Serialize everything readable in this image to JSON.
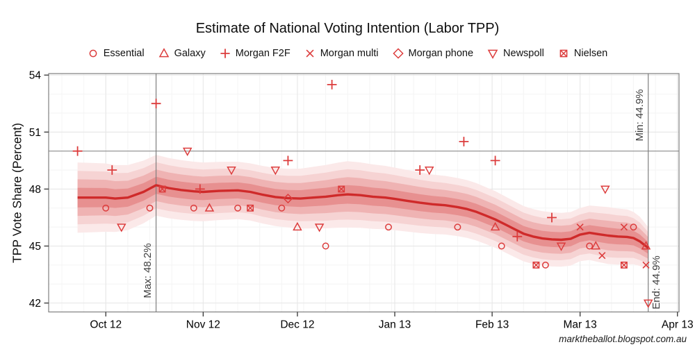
{
  "header": {
    "title": "Estimate of National Voting Intention (Labor TPP)"
  },
  "footer": {
    "watermark": "marktheballot.blogspot.com.au"
  },
  "chart_data": {
    "type": "line",
    "title": "Estimate of National Voting Intention (Labor TPP)",
    "xlabel": "",
    "ylabel": "TPP Vote Share (Percent)",
    "x_unit": "days since 1 Oct 2012",
    "xlim": [
      -18.2,
      182.5
    ],
    "ylim": [
      41.53,
      54.08
    ],
    "grid": {
      "show": true,
      "y_minor_step": 1,
      "x_minor_step_days": 7,
      "x_minor_start": -14
    },
    "y_ticks": {
      "values": [
        42,
        45,
        48,
        51,
        54
      ],
      "labels": [
        "42",
        "45",
        "48",
        "51",
        "54"
      ]
    },
    "x_ticks": {
      "days": [
        0,
        31,
        61,
        92,
        123,
        151,
        182
      ],
      "labels": [
        "Oct 12",
        "Nov 12",
        "Dec 12",
        "Jan 13",
        "Feb 13",
        "Mar 13",
        "Apr 13"
      ]
    },
    "reference_line_y": 50,
    "annotations": [
      {
        "id": "max",
        "label": "Max: 48.2%",
        "day": 16,
        "value": 48.2,
        "cy": 390,
        "dx": -12
      },
      {
        "id": "min",
        "label": "Min: 44.9%",
        "day": 172.7,
        "value": 44.9,
        "cy": 166,
        "dx": -12
      },
      {
        "id": "end",
        "label": "End: 44.9%",
        "day": 172.7,
        "value": 44.9,
        "cy": 407,
        "dx": 12
      }
    ],
    "trend": {
      "name": "smoothed estimate",
      "points": [
        [
          -9,
          47.55
        ],
        [
          0,
          47.55
        ],
        [
          3,
          47.5
        ],
        [
          7,
          47.55
        ],
        [
          12,
          47.85
        ],
        [
          16,
          48.2
        ],
        [
          20,
          48.05
        ],
        [
          24,
          47.95
        ],
        [
          28,
          47.88
        ],
        [
          31,
          47.85
        ],
        [
          36,
          47.9
        ],
        [
          42,
          47.93
        ],
        [
          46,
          47.85
        ],
        [
          50,
          47.7
        ],
        [
          54,
          47.58
        ],
        [
          58,
          47.52
        ],
        [
          62,
          47.5
        ],
        [
          66,
          47.55
        ],
        [
          70,
          47.6
        ],
        [
          74,
          47.68
        ],
        [
          77,
          47.72
        ],
        [
          81,
          47.68
        ],
        [
          85,
          47.6
        ],
        [
          89,
          47.55
        ],
        [
          92,
          47.48
        ],
        [
          96,
          47.38
        ],
        [
          100,
          47.28
        ],
        [
          104,
          47.2
        ],
        [
          108,
          47.15
        ],
        [
          112,
          47.05
        ],
        [
          115,
          46.95
        ],
        [
          118,
          46.8
        ],
        [
          121,
          46.6
        ],
        [
          124,
          46.4
        ],
        [
          127,
          46.15
        ],
        [
          130,
          45.9
        ],
        [
          133,
          45.65
        ],
        [
          136,
          45.5
        ],
        [
          139,
          45.4
        ],
        [
          142,
          45.35
        ],
        [
          145,
          45.33
        ],
        [
          148,
          45.38
        ],
        [
          151,
          45.6
        ],
        [
          154,
          45.7
        ],
        [
          157,
          45.62
        ],
        [
          160,
          45.55
        ],
        [
          163,
          45.5
        ],
        [
          166,
          45.48
        ],
        [
          168,
          45.42
        ],
        [
          170,
          45.25
        ],
        [
          172.7,
          44.9
        ]
      ]
    },
    "bands": {
      "outer_halfwidth": [
        [
          -9,
          1.85
        ],
        [
          0,
          1.8
        ],
        [
          16,
          1.6
        ],
        [
          31,
          1.55
        ],
        [
          45,
          1.5
        ],
        [
          60,
          1.55
        ],
        [
          77,
          1.75
        ],
        [
          92,
          1.65
        ],
        [
          106,
          1.55
        ],
        [
          121,
          1.5
        ],
        [
          135,
          1.45
        ],
        [
          151,
          1.4
        ],
        [
          160,
          1.5
        ],
        [
          166,
          1.45
        ],
        [
          170,
          1.3
        ],
        [
          172.7,
          1.1
        ]
      ],
      "levels": [
        {
          "fraction": 1.0,
          "color": "#fbe9e9"
        },
        {
          "fraction": 0.76,
          "color": "#f6d3d3"
        },
        {
          "fraction": 0.52,
          "color": "#efb3b3"
        },
        {
          "fraction": 0.28,
          "color": "#e79090"
        }
      ]
    },
    "series": [
      {
        "name": "Essential",
        "marker": "circle",
        "points": [
          [
            0,
            47
          ],
          [
            14,
            47
          ],
          [
            28,
            47
          ],
          [
            42,
            47
          ],
          [
            56,
            47
          ],
          [
            70,
            45
          ],
          [
            90,
            46
          ],
          [
            112,
            46
          ],
          [
            126,
            45
          ],
          [
            140,
            44
          ],
          [
            154,
            45
          ],
          [
            168,
            46
          ]
        ]
      },
      {
        "name": "Galaxy",
        "marker": "triangle-up",
        "points": [
          [
            33,
            47
          ],
          [
            61,
            46
          ],
          [
            124,
            46
          ],
          [
            156,
            45
          ],
          [
            172,
            45
          ]
        ]
      },
      {
        "name": "Morgan F2F",
        "marker": "plus",
        "points": [
          [
            -9,
            50
          ],
          [
            2,
            49
          ],
          [
            16,
            52.5
          ],
          [
            30,
            48
          ],
          [
            58,
            49.5
          ],
          [
            72,
            53.5
          ],
          [
            100,
            49
          ],
          [
            114,
            50.5
          ],
          [
            124,
            49.5
          ],
          [
            131,
            45.5
          ],
          [
            142,
            46.5
          ]
        ]
      },
      {
        "name": "Morgan multi",
        "marker": "x",
        "points": [
          [
            151,
            46
          ],
          [
            158,
            44.5
          ],
          [
            165,
            46
          ],
          [
            172,
            44
          ]
        ]
      },
      {
        "name": "Morgan phone",
        "marker": "diamond",
        "points": [
          [
            58,
            47.5
          ]
        ]
      },
      {
        "name": "Newspoll",
        "marker": "triangle-down",
        "points": [
          [
            5,
            46
          ],
          [
            26,
            50
          ],
          [
            40,
            49
          ],
          [
            54,
            49
          ],
          [
            68,
            46
          ],
          [
            103,
            49
          ],
          [
            145,
            45
          ],
          [
            159,
            48
          ],
          [
            172.7,
            42
          ]
        ]
      },
      {
        "name": "Nielsen",
        "marker": "square-x",
        "points": [
          [
            18,
            48
          ],
          [
            46,
            47
          ],
          [
            75,
            48
          ],
          [
            137,
            44
          ],
          [
            165,
            44
          ]
        ]
      }
    ],
    "colors": {
      "marker": "#dc3c3c",
      "trend": "#cf2a2a",
      "reference_line": "#8c8c8c",
      "annotation_line": "#7f7f7f",
      "annotation_text": "#404040",
      "grid_major": "#e7e7e7",
      "grid_minor": "#f5f5f5",
      "panel_border": "#7f7f7f",
      "tick": "#333333",
      "tick_label": "#000000"
    }
  }
}
